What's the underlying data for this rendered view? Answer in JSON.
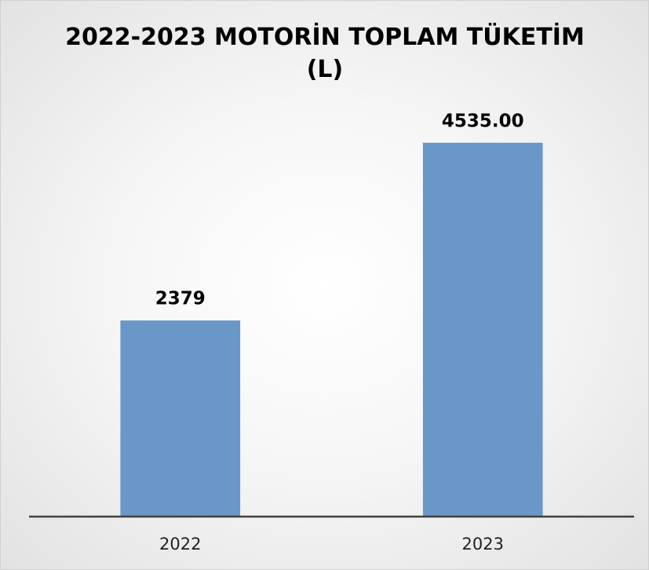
{
  "chart_data": {
    "type": "bar",
    "title": "2022-2023 MOTORİN TOPLAM TÜKETİM (L)",
    "categories": [
      "2022",
      "2023"
    ],
    "values": [
      2379,
      4535
    ],
    "value_labels": [
      "2379",
      "4535.00"
    ],
    "color": "#6a96c8",
    "ylim": [
      0,
      5000
    ]
  }
}
